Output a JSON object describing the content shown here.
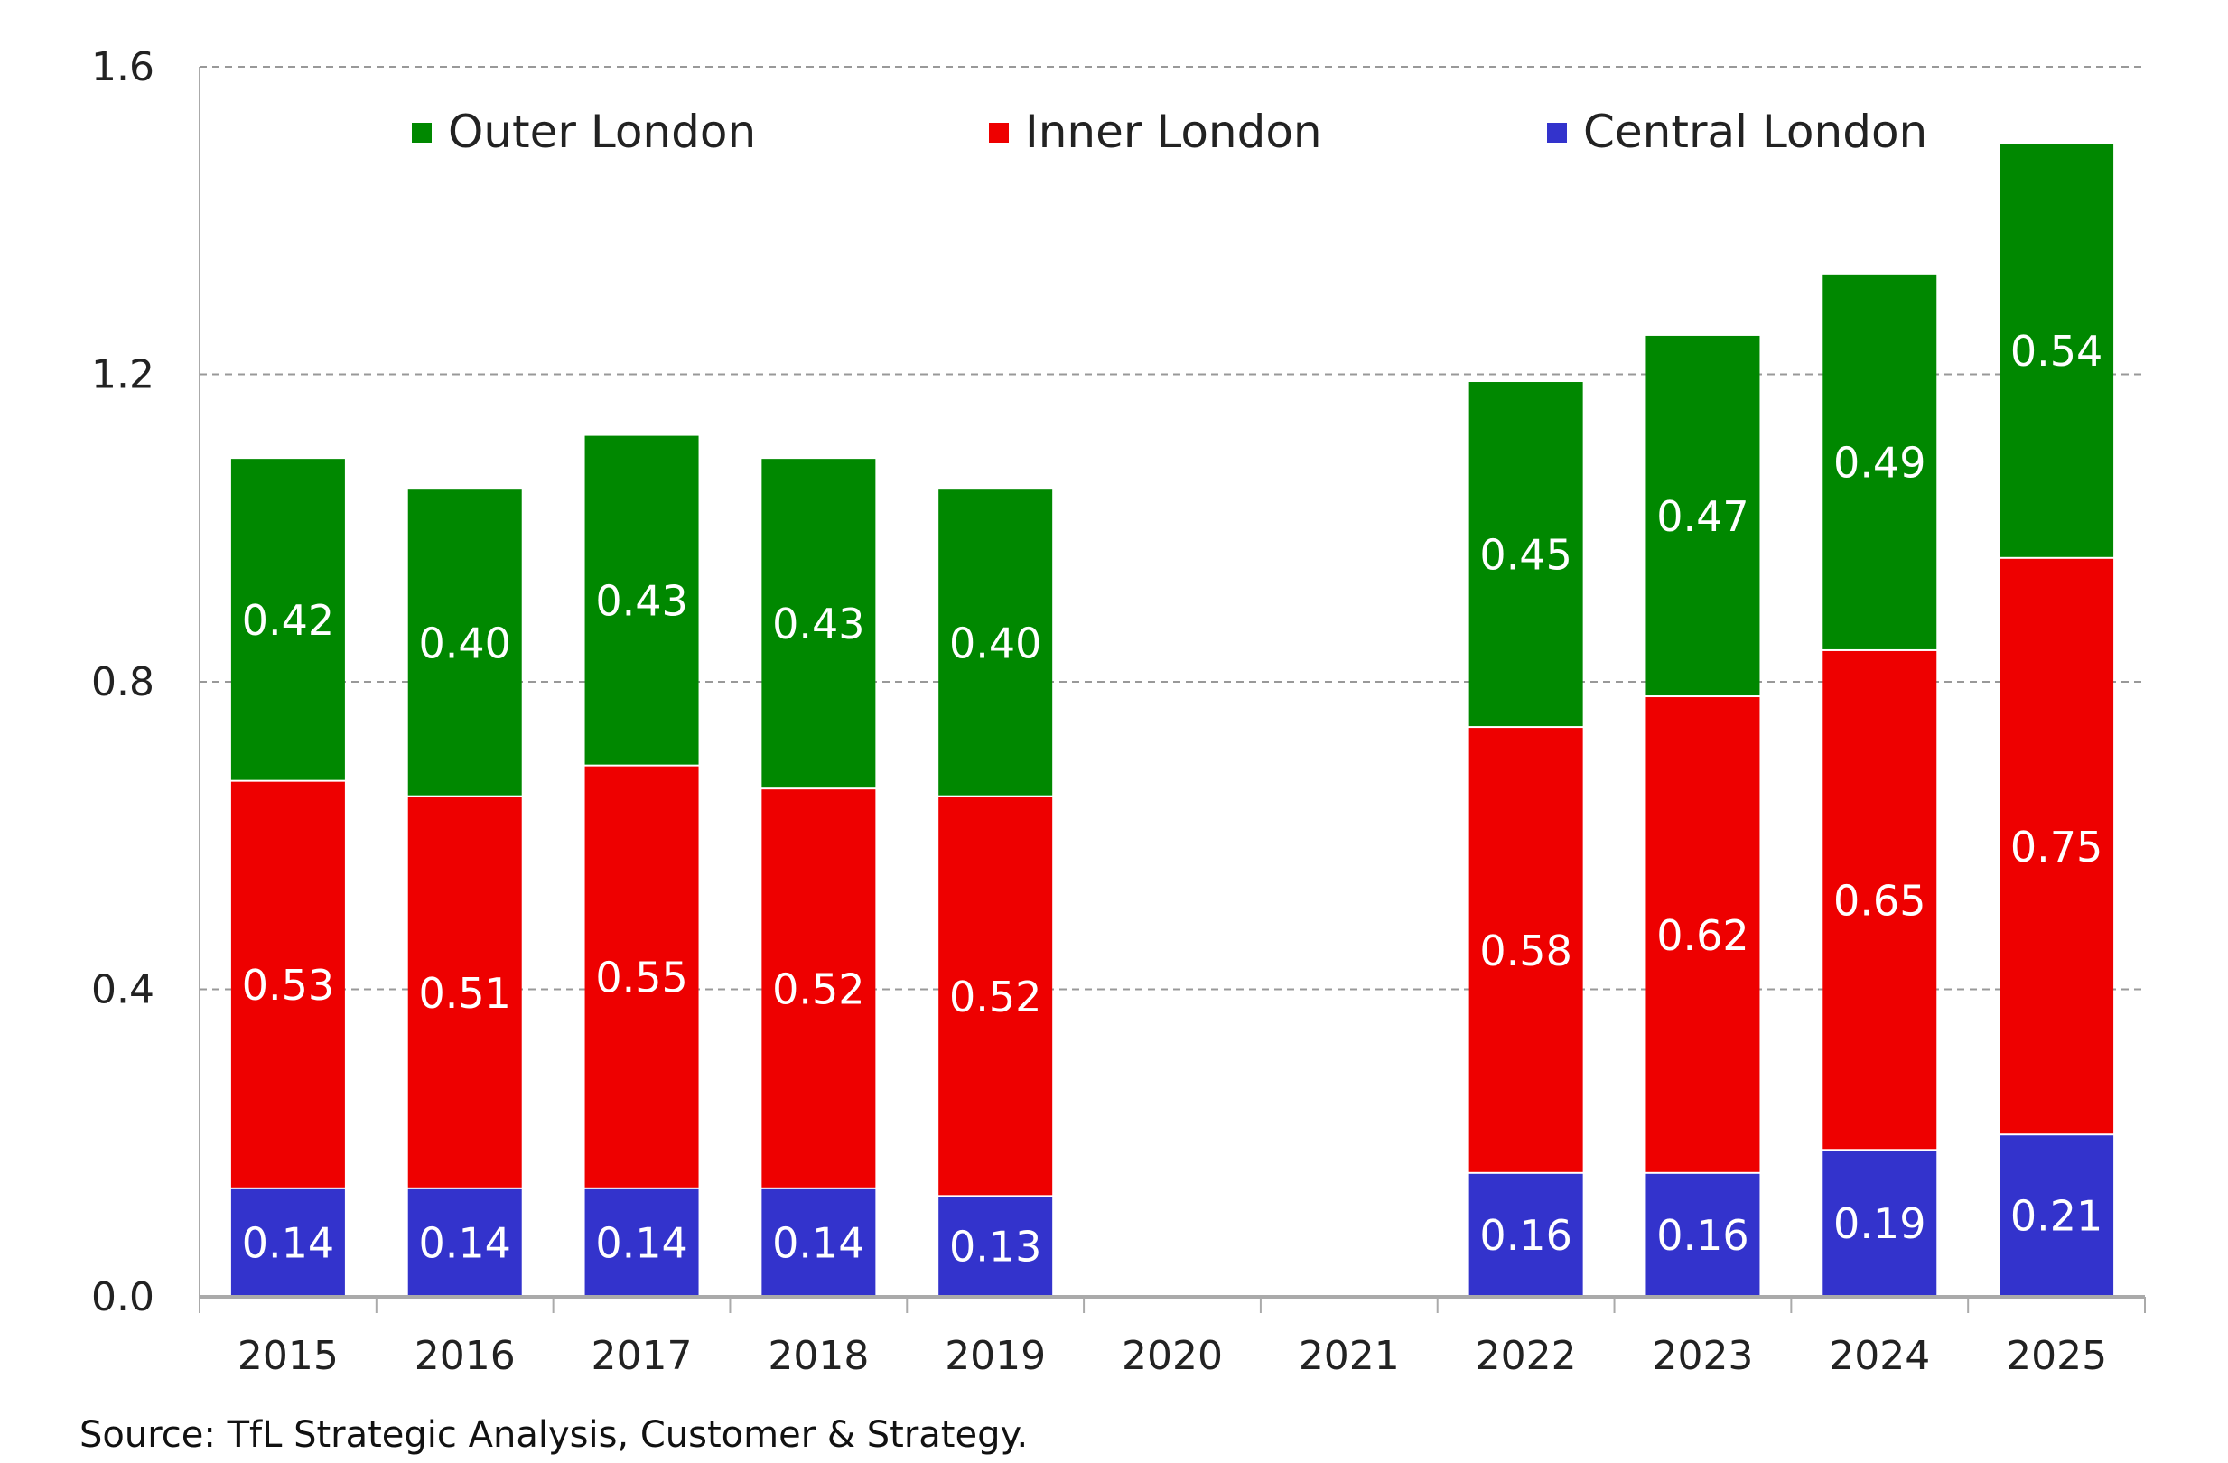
{
  "chart_data": {
    "type": "bar",
    "stacked": true,
    "categories": [
      "2015",
      "2016",
      "2017",
      "2018",
      "2019",
      "2020",
      "2021",
      "2022",
      "2023",
      "2024",
      "2025"
    ],
    "series": [
      {
        "name": "Central London",
        "color": "#3333cc",
        "values": [
          0.14,
          0.14,
          0.14,
          0.14,
          0.13,
          null,
          null,
          0.16,
          0.16,
          0.19,
          0.21
        ]
      },
      {
        "name": "Inner London",
        "color": "#ee0000",
        "values": [
          0.53,
          0.51,
          0.55,
          0.52,
          0.52,
          null,
          null,
          0.58,
          0.62,
          0.65,
          0.75
        ]
      },
      {
        "name": "Outer London",
        "color": "#008800",
        "values": [
          0.42,
          0.4,
          0.43,
          0.43,
          0.4,
          null,
          null,
          0.45,
          0.47,
          0.49,
          0.54
        ]
      }
    ],
    "legend_order": [
      "Outer London",
      "Inner London",
      "Central London"
    ],
    "legend_placement": "top",
    "yticks": [
      "0.0",
      "0.4",
      "0.8",
      "1.2",
      "1.6"
    ],
    "ylim": [
      0,
      1.6
    ],
    "grid": "horizontal dashed",
    "data_labels": true
  },
  "source": "Source: TfL Strategic Analysis, Customer & Strategy."
}
